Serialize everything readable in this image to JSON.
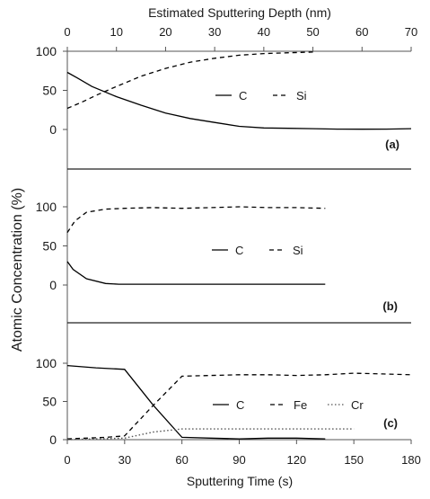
{
  "figure": {
    "top_axis_label": "Estimated Sputtering Depth (nm)",
    "bottom_axis_label": "Sputtering Time (s)",
    "y_axis_label": "Atomic Concentration (%)"
  },
  "chart_data": [
    {
      "type": "line",
      "panel_label": "(a)",
      "xlabel": "Estimated Sputtering Depth (nm)",
      "x_ticks": [
        0,
        10,
        20,
        30,
        40,
        50,
        60,
        70
      ],
      "xlim": [
        0,
        70
      ],
      "ylim": [
        0,
        100
      ],
      "y_ticks": [
        0,
        50,
        100
      ],
      "grid": false,
      "legend_placement": "center",
      "series": [
        {
          "name": "C",
          "style": "solid",
          "color": "#000000",
          "x": [
            0,
            2,
            5,
            10,
            15,
            20,
            25,
            30,
            35,
            40,
            45,
            50,
            55,
            60,
            65,
            70
          ],
          "y": [
            73,
            66,
            55,
            42,
            31,
            21,
            14,
            9,
            4,
            2,
            1.5,
            1,
            0.5,
            0.3,
            0.5,
            1
          ]
        },
        {
          "name": "Si",
          "style": "dashed",
          "color": "#000000",
          "x": [
            0,
            3,
            6,
            10,
            15,
            20,
            25,
            30,
            35,
            40,
            45,
            50
          ],
          "y": [
            27,
            35,
            44,
            55,
            68,
            78,
            86,
            91,
            95,
            97,
            98,
            99
          ]
        }
      ]
    },
    {
      "type": "line",
      "panel_label": "(b)",
      "xlim": [
        0,
        180
      ],
      "ylim": [
        0,
        100
      ],
      "y_ticks": [
        0,
        50,
        100
      ],
      "grid": false,
      "legend_placement": "center",
      "series": [
        {
          "name": "C",
          "style": "solid",
          "color": "#000000",
          "x": [
            0,
            3,
            10,
            20,
            27,
            40,
            60,
            80,
            100,
            120,
            135
          ],
          "y": [
            30,
            20,
            8,
            2,
            1,
            1,
            1,
            1,
            1,
            1,
            1
          ]
        },
        {
          "name": "Si",
          "style": "dashed",
          "color": "#000000",
          "x": [
            0,
            4,
            10,
            20,
            30,
            45,
            60,
            75,
            90,
            105,
            120,
            135
          ],
          "y": [
            67,
            82,
            93,
            97,
            98,
            99,
            98,
            99,
            100,
            99,
            99,
            98
          ]
        }
      ]
    },
    {
      "type": "line",
      "panel_label": "(c)",
      "xlabel": "Sputtering Time (s)",
      "x_ticks": [
        0,
        30,
        60,
        90,
        120,
        150,
        180
      ],
      "xlim": [
        0,
        180
      ],
      "ylim": [
        0,
        100
      ],
      "y_ticks": [
        0,
        50,
        100
      ],
      "grid": false,
      "legend_placement": "bottom-center",
      "series": [
        {
          "name": "C",
          "style": "solid",
          "color": "#000000",
          "x": [
            0,
            15,
            30,
            45,
            60,
            75,
            90,
            105,
            120,
            135
          ],
          "y": [
            97,
            94,
            92,
            45,
            3,
            2,
            1,
            2,
            2,
            1
          ]
        },
        {
          "name": "Fe",
          "style": "dashed",
          "color": "#000000",
          "x": [
            0,
            10,
            20,
            30,
            45,
            60,
            75,
            90,
            105,
            120,
            135,
            150,
            165,
            180
          ],
          "y": [
            1,
            2,
            3,
            5,
            45,
            83,
            84,
            85,
            85,
            84,
            85,
            87,
            86,
            85
          ]
        },
        {
          "name": "Cr",
          "style": "dotted",
          "color": "#555555",
          "x": [
            0,
            15,
            30,
            45,
            60,
            75,
            90,
            105,
            120,
            135,
            150
          ],
          "y": [
            0,
            1,
            2,
            10,
            14,
            14,
            14,
            14,
            14,
            14,
            14
          ]
        }
      ]
    }
  ]
}
